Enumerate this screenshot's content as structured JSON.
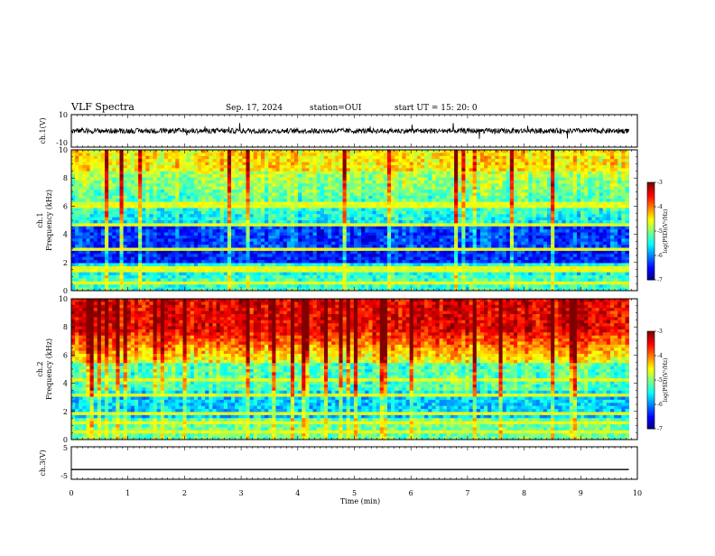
{
  "header": {
    "title": "VLF Spectra",
    "date": "Sep. 17, 2024",
    "station": "station=OUI",
    "start": "start  UT =   15: 20: 0"
  },
  "chart_data": [
    {
      "type": "line",
      "panel": "ch1-waveform",
      "ylabel": "ch.1(V)",
      "ylim": [
        -10,
        10
      ],
      "yticks": [
        "10",
        "-10"
      ],
      "xlim": [
        0,
        10
      ],
      "signal": "noisy waveform, amplitude about +/-2 V, spikes to about +/-5 V"
    },
    {
      "type": "heatmap",
      "panel": "ch1-spectrogram",
      "ylabel": "ch.1\nFrequency (kHz)",
      "ylim": [
        0,
        10
      ],
      "yticks": [
        "0",
        "2",
        "4",
        "6",
        "8",
        "10"
      ],
      "xlim": [
        0,
        10
      ],
      "colorbar": {
        "label": "log(PSD)(V²/Hz)",
        "range": [
          -7,
          -3
        ],
        "ticks": [
          "-3",
          "-4",
          "-5",
          "-6",
          "-7"
        ]
      },
      "data_end_min": 9.85
    },
    {
      "type": "heatmap",
      "panel": "ch2-spectrogram",
      "ylabel": "ch.2\nFrequency (kHz)",
      "ylim": [
        0,
        10
      ],
      "yticks": [
        "0",
        "2",
        "4",
        "6",
        "8",
        "10"
      ],
      "xlim": [
        0,
        10
      ],
      "colorbar": {
        "label": "log(PSD)(V²/Hz)",
        "range": [
          -7,
          -3
        ],
        "ticks": [
          "-3",
          "-4",
          "-5",
          "-6",
          "-7"
        ]
      },
      "data_end_min": 9.85
    },
    {
      "type": "line",
      "panel": "ch3-waveform",
      "ylabel": "ch.3(V)",
      "ylim": [
        -5,
        5
      ],
      "yticks": [
        "5",
        "-5"
      ],
      "xlim": [
        0,
        10
      ],
      "value": -2,
      "xlabel": "Time  (min)",
      "xticks": [
        "0",
        "1",
        "2",
        "3",
        "4",
        "5",
        "6",
        "7",
        "8",
        "9",
        "10"
      ]
    }
  ]
}
